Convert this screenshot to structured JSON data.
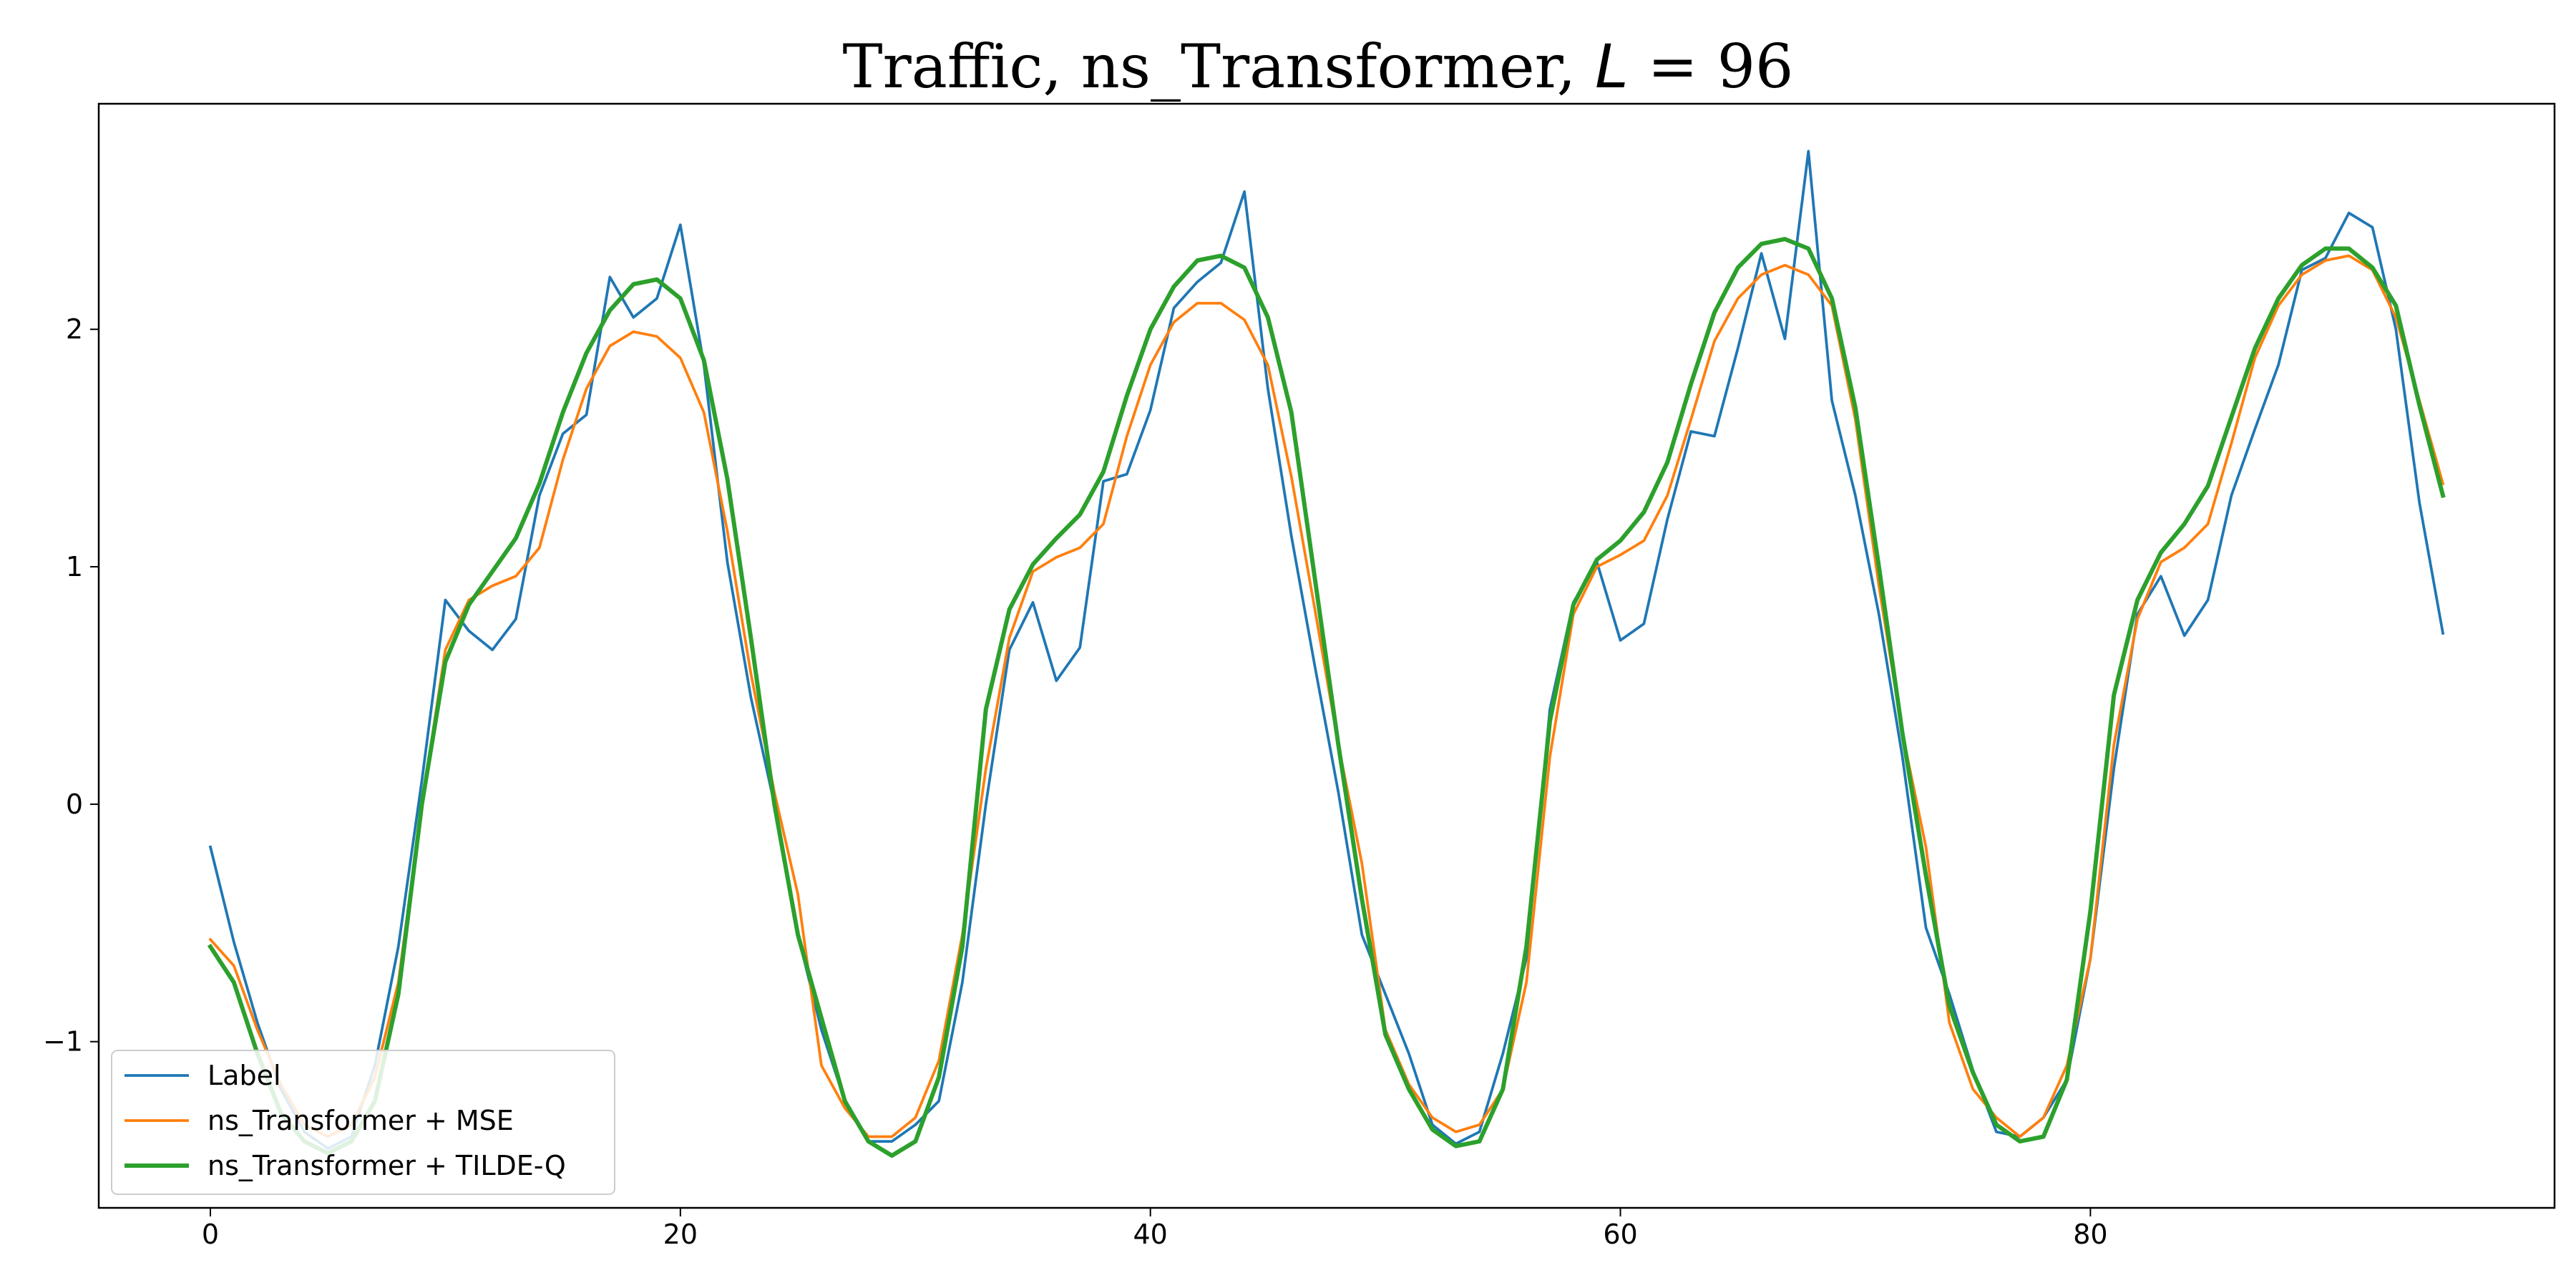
{
  "chart_data": {
    "type": "line",
    "title": "Traffic, ns_Transformer, L = 96",
    "title_parts": {
      "prefix": "Traffic, ns_Transformer, ",
      "var": "L",
      "suffix": " = 96"
    },
    "xlabel": "",
    "ylabel": "",
    "xlim": [
      -4.75,
      99.75
    ],
    "ylim": [
      -1.7,
      2.95
    ],
    "xticks": [
      0,
      20,
      40,
      60,
      80
    ],
    "xtick_labels": [
      "0",
      "20",
      "40",
      "60",
      "80"
    ],
    "yticks": [
      -1,
      0,
      1,
      2
    ],
    "ytick_labels": [
      "−1",
      "0",
      "1",
      "2"
    ],
    "grid": false,
    "legend": "lower-left",
    "x": [
      0,
      1,
      2,
      3,
      4,
      5,
      6,
      7,
      8,
      9,
      10,
      11,
      12,
      13,
      14,
      15,
      16,
      17,
      18,
      19,
      20,
      21,
      22,
      23,
      24,
      25,
      26,
      27,
      28,
      29,
      30,
      31,
      32,
      33,
      34,
      35,
      36,
      37,
      38,
      39,
      40,
      41,
      42,
      43,
      44,
      45,
      46,
      47,
      48,
      49,
      50,
      51,
      52,
      53,
      54,
      55,
      56,
      57,
      58,
      59,
      60,
      61,
      62,
      63,
      64,
      65,
      66,
      67,
      68,
      69,
      70,
      71,
      72,
      73,
      74,
      75,
      76,
      77,
      78,
      79,
      80,
      81,
      82,
      83,
      84,
      85,
      86,
      87,
      88,
      89,
      90,
      91,
      92,
      93,
      94,
      95
    ],
    "series": [
      {
        "name": "Label",
        "color": "#1f77b4",
        "width": 1.5,
        "values": [
          -0.18,
          -0.58,
          -0.92,
          -1.2,
          -1.38,
          -1.45,
          -1.4,
          -1.1,
          -0.6,
          0.1,
          0.86,
          0.73,
          0.65,
          0.78,
          1.3,
          1.56,
          1.64,
          2.22,
          2.05,
          2.13,
          2.44,
          1.85,
          1.02,
          0.45,
          0.0,
          -0.55,
          -0.95,
          -1.25,
          -1.42,
          -1.42,
          -1.35,
          -1.25,
          -0.75,
          0.0,
          0.65,
          0.85,
          0.52,
          0.66,
          1.36,
          1.39,
          1.66,
          2.09,
          2.2,
          2.28,
          2.58,
          1.75,
          1.13,
          0.58,
          0.05,
          -0.55,
          -0.8,
          -1.05,
          -1.35,
          -1.43,
          -1.38,
          -1.05,
          -0.65,
          0.4,
          0.85,
          1.02,
          0.69,
          0.76,
          1.2,
          1.57,
          1.55,
          1.92,
          2.32,
          1.96,
          2.75,
          1.7,
          1.3,
          0.8,
          0.2,
          -0.52,
          -0.8,
          -1.12,
          -1.38,
          -1.4,
          -1.32,
          -1.16,
          -0.65,
          0.15,
          0.8,
          0.96,
          0.71,
          0.86,
          1.3,
          1.58,
          1.85,
          2.25,
          2.3,
          2.49,
          2.43,
          2.0,
          1.27,
          0.72
        ]
      },
      {
        "name": "ns_Transformer + MSE",
        "color": "#ff7f0e",
        "width": 1.5,
        "values": [
          -0.57,
          -0.68,
          -0.95,
          -1.18,
          -1.35,
          -1.4,
          -1.35,
          -1.15,
          -0.75,
          0.0,
          0.65,
          0.86,
          0.92,
          0.96,
          1.08,
          1.45,
          1.75,
          1.93,
          1.99,
          1.97,
          1.88,
          1.65,
          1.15,
          0.55,
          0.05,
          -0.38,
          -1.1,
          -1.28,
          -1.4,
          -1.4,
          -1.32,
          -1.08,
          -0.55,
          0.15,
          0.7,
          0.98,
          1.04,
          1.08,
          1.18,
          1.55,
          1.85,
          2.03,
          2.11,
          2.11,
          2.04,
          1.85,
          1.38,
          0.82,
          0.25,
          -0.25,
          -0.95,
          -1.18,
          -1.32,
          -1.38,
          -1.35,
          -1.2,
          -0.75,
          0.2,
          0.8,
          1.0,
          1.05,
          1.11,
          1.3,
          1.62,
          1.95,
          2.13,
          2.23,
          2.27,
          2.23,
          2.1,
          1.62,
          0.92,
          0.3,
          -0.18,
          -0.92,
          -1.2,
          -1.32,
          -1.4,
          -1.32,
          -1.1,
          -0.65,
          0.25,
          0.78,
          1.02,
          1.08,
          1.18,
          1.52,
          1.88,
          2.1,
          2.23,
          2.29,
          2.31,
          2.25,
          2.05,
          1.7,
          1.35
        ]
      },
      {
        "name": "ns_Transformer + TILDE-Q",
        "color": "#2ca02c",
        "width": 2.4,
        "values": [
          -0.6,
          -0.75,
          -1.05,
          -1.3,
          -1.42,
          -1.47,
          -1.42,
          -1.25,
          -0.8,
          0.0,
          0.6,
          0.84,
          0.98,
          1.12,
          1.35,
          1.65,
          1.9,
          2.08,
          2.19,
          2.21,
          2.13,
          1.87,
          1.37,
          0.7,
          0.0,
          -0.55,
          -0.9,
          -1.25,
          -1.42,
          -1.48,
          -1.42,
          -1.15,
          -0.6,
          0.4,
          0.82,
          1.01,
          1.12,
          1.22,
          1.4,
          1.72,
          2.0,
          2.18,
          2.29,
          2.31,
          2.26,
          2.05,
          1.65,
          0.95,
          0.25,
          -0.4,
          -0.97,
          -1.2,
          -1.37,
          -1.44,
          -1.42,
          -1.2,
          -0.6,
          0.35,
          0.84,
          1.03,
          1.11,
          1.23,
          1.44,
          1.77,
          2.07,
          2.26,
          2.36,
          2.38,
          2.34,
          2.13,
          1.67,
          1.0,
          0.3,
          -0.3,
          -0.85,
          -1.13,
          -1.35,
          -1.42,
          -1.4,
          -1.16,
          -0.45,
          0.46,
          0.86,
          1.06,
          1.18,
          1.34,
          1.63,
          1.92,
          2.13,
          2.27,
          2.34,
          2.34,
          2.26,
          2.1,
          1.68,
          1.3
        ]
      }
    ]
  }
}
